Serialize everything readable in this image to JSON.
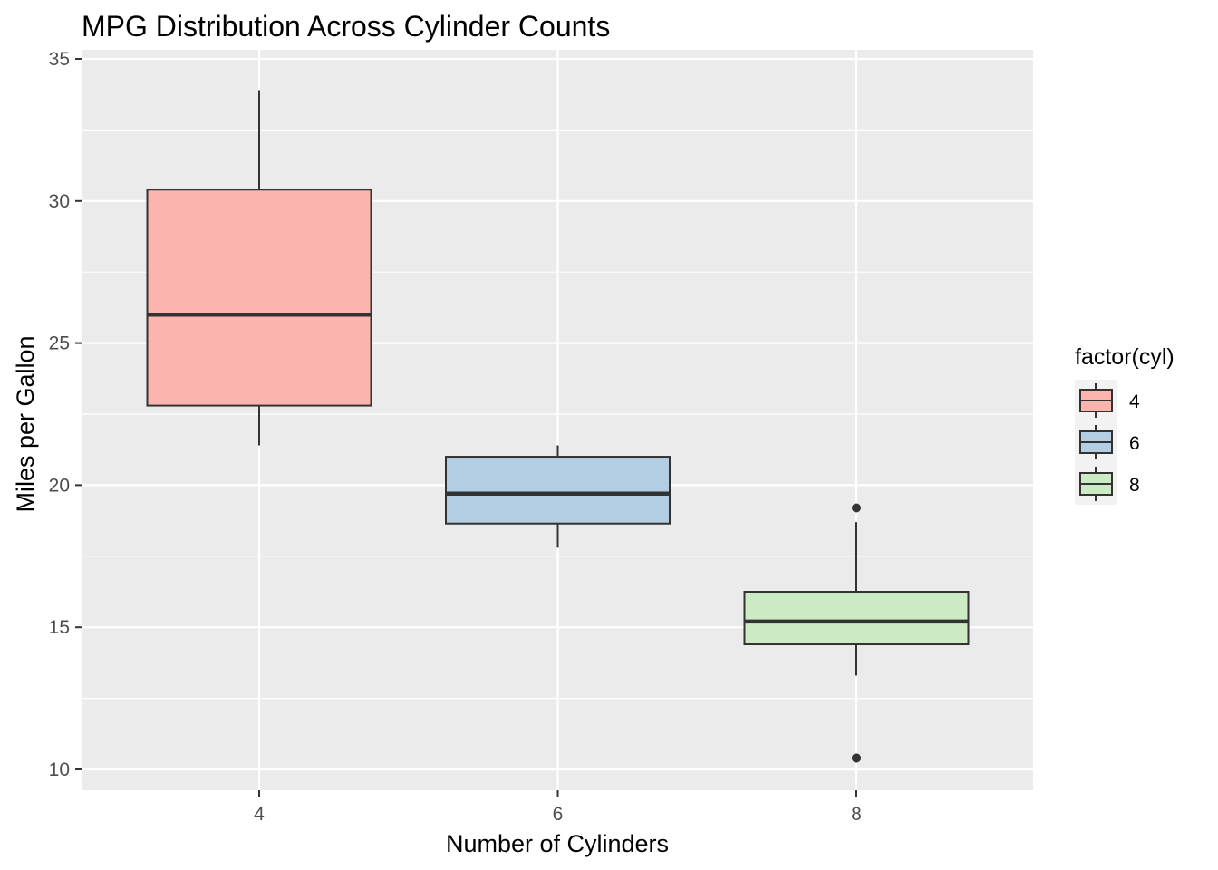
{
  "chart_data": {
    "type": "boxplot",
    "title": "MPG Distribution Across Cylinder Counts",
    "xlabel": "Number of Cylinders",
    "ylabel": "Miles per Gallon",
    "categories": [
      "4",
      "6",
      "8"
    ],
    "ylim": [
      9.25,
      35.0
    ],
    "yticks": [
      10,
      15,
      20,
      25,
      30,
      35
    ],
    "grid": true,
    "legend": {
      "title": "factor(cyl)",
      "position": "right",
      "entries": [
        "4",
        "6",
        "8"
      ]
    },
    "colors": {
      "4": "#fbb4ae",
      "6": "#b3cde3",
      "8": "#ccebc5",
      "panel": "#ebebeb",
      "outline": "#333333"
    },
    "boxes": [
      {
        "category": "4",
        "min": 21.4,
        "q1": 22.8,
        "median": 26.0,
        "q3": 30.4,
        "max": 33.9,
        "outliers": []
      },
      {
        "category": "6",
        "min": 17.8,
        "q1": 18.65,
        "median": 19.7,
        "q3": 21.0,
        "max": 21.4,
        "outliers": []
      },
      {
        "category": "8",
        "min": 13.3,
        "q1": 14.4,
        "median": 15.2,
        "q3": 16.25,
        "max": 18.7,
        "outliers": [
          10.4,
          10.4,
          19.2
        ]
      }
    ]
  }
}
